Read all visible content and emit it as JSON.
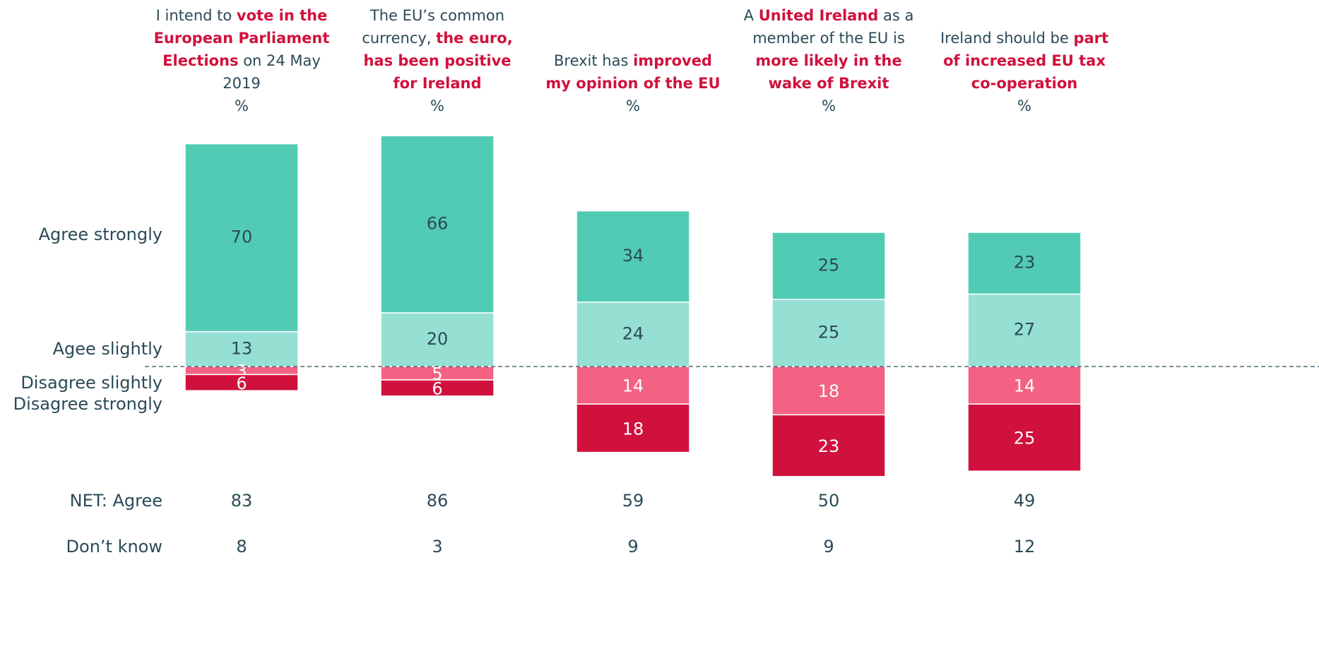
{
  "chart_data": {
    "type": "diverging_bar",
    "categories": [
      [
        {
          "text": "I intend to ",
          "bold": false
        },
        {
          "text": "vote in the European Parliament Elections",
          "bold": true
        },
        {
          "text": " on 24 May 2019",
          "bold": false
        }
      ],
      [
        {
          "text": "The EU’s common currency, ",
          "bold": false
        },
        {
          "text": "the euro, has been positive for Ireland",
          "bold": true
        }
      ],
      [
        {
          "text": "Brexit has ",
          "bold": false
        },
        {
          "text": "improved my opinion of the EU",
          "bold": true
        }
      ],
      [
        {
          "text": "A ",
          "bold": false
        },
        {
          "text": "United Ireland",
          "bold": true
        },
        {
          "text": " as a member of the EU is ",
          "bold": false
        },
        {
          "text": "more likely in the wake of Brexit",
          "bold": true
        }
      ],
      [
        {
          "text": "Ireland should be ",
          "bold": false
        },
        {
          "text": "part of increased EU tax co-operation",
          "bold": true
        }
      ]
    ],
    "unit": "%",
    "series": [
      {
        "name": "Agree strongly",
        "color": "#52cbb5",
        "stack": "up",
        "values": [
          70,
          66,
          34,
          25,
          23
        ]
      },
      {
        "name": "Agee slightly",
        "color": "#95e0d2",
        "stack": "up",
        "values": [
          13,
          20,
          24,
          25,
          27
        ]
      },
      {
        "name": "Disagree slightly",
        "color": "#f36282",
        "stack": "down",
        "values": [
          3,
          5,
          14,
          18,
          14
        ]
      },
      {
        "name": "Disagree strongly",
        "color": "#d0113d",
        "stack": "down",
        "values": [
          6,
          6,
          18,
          23,
          25
        ]
      }
    ],
    "rows": [
      {
        "name": "NET: Agree",
        "values": [
          83,
          86,
          59,
          50,
          49
        ]
      },
      {
        "name": "Don’t know",
        "values": [
          8,
          3,
          9,
          9,
          12
        ]
      }
    ]
  }
}
